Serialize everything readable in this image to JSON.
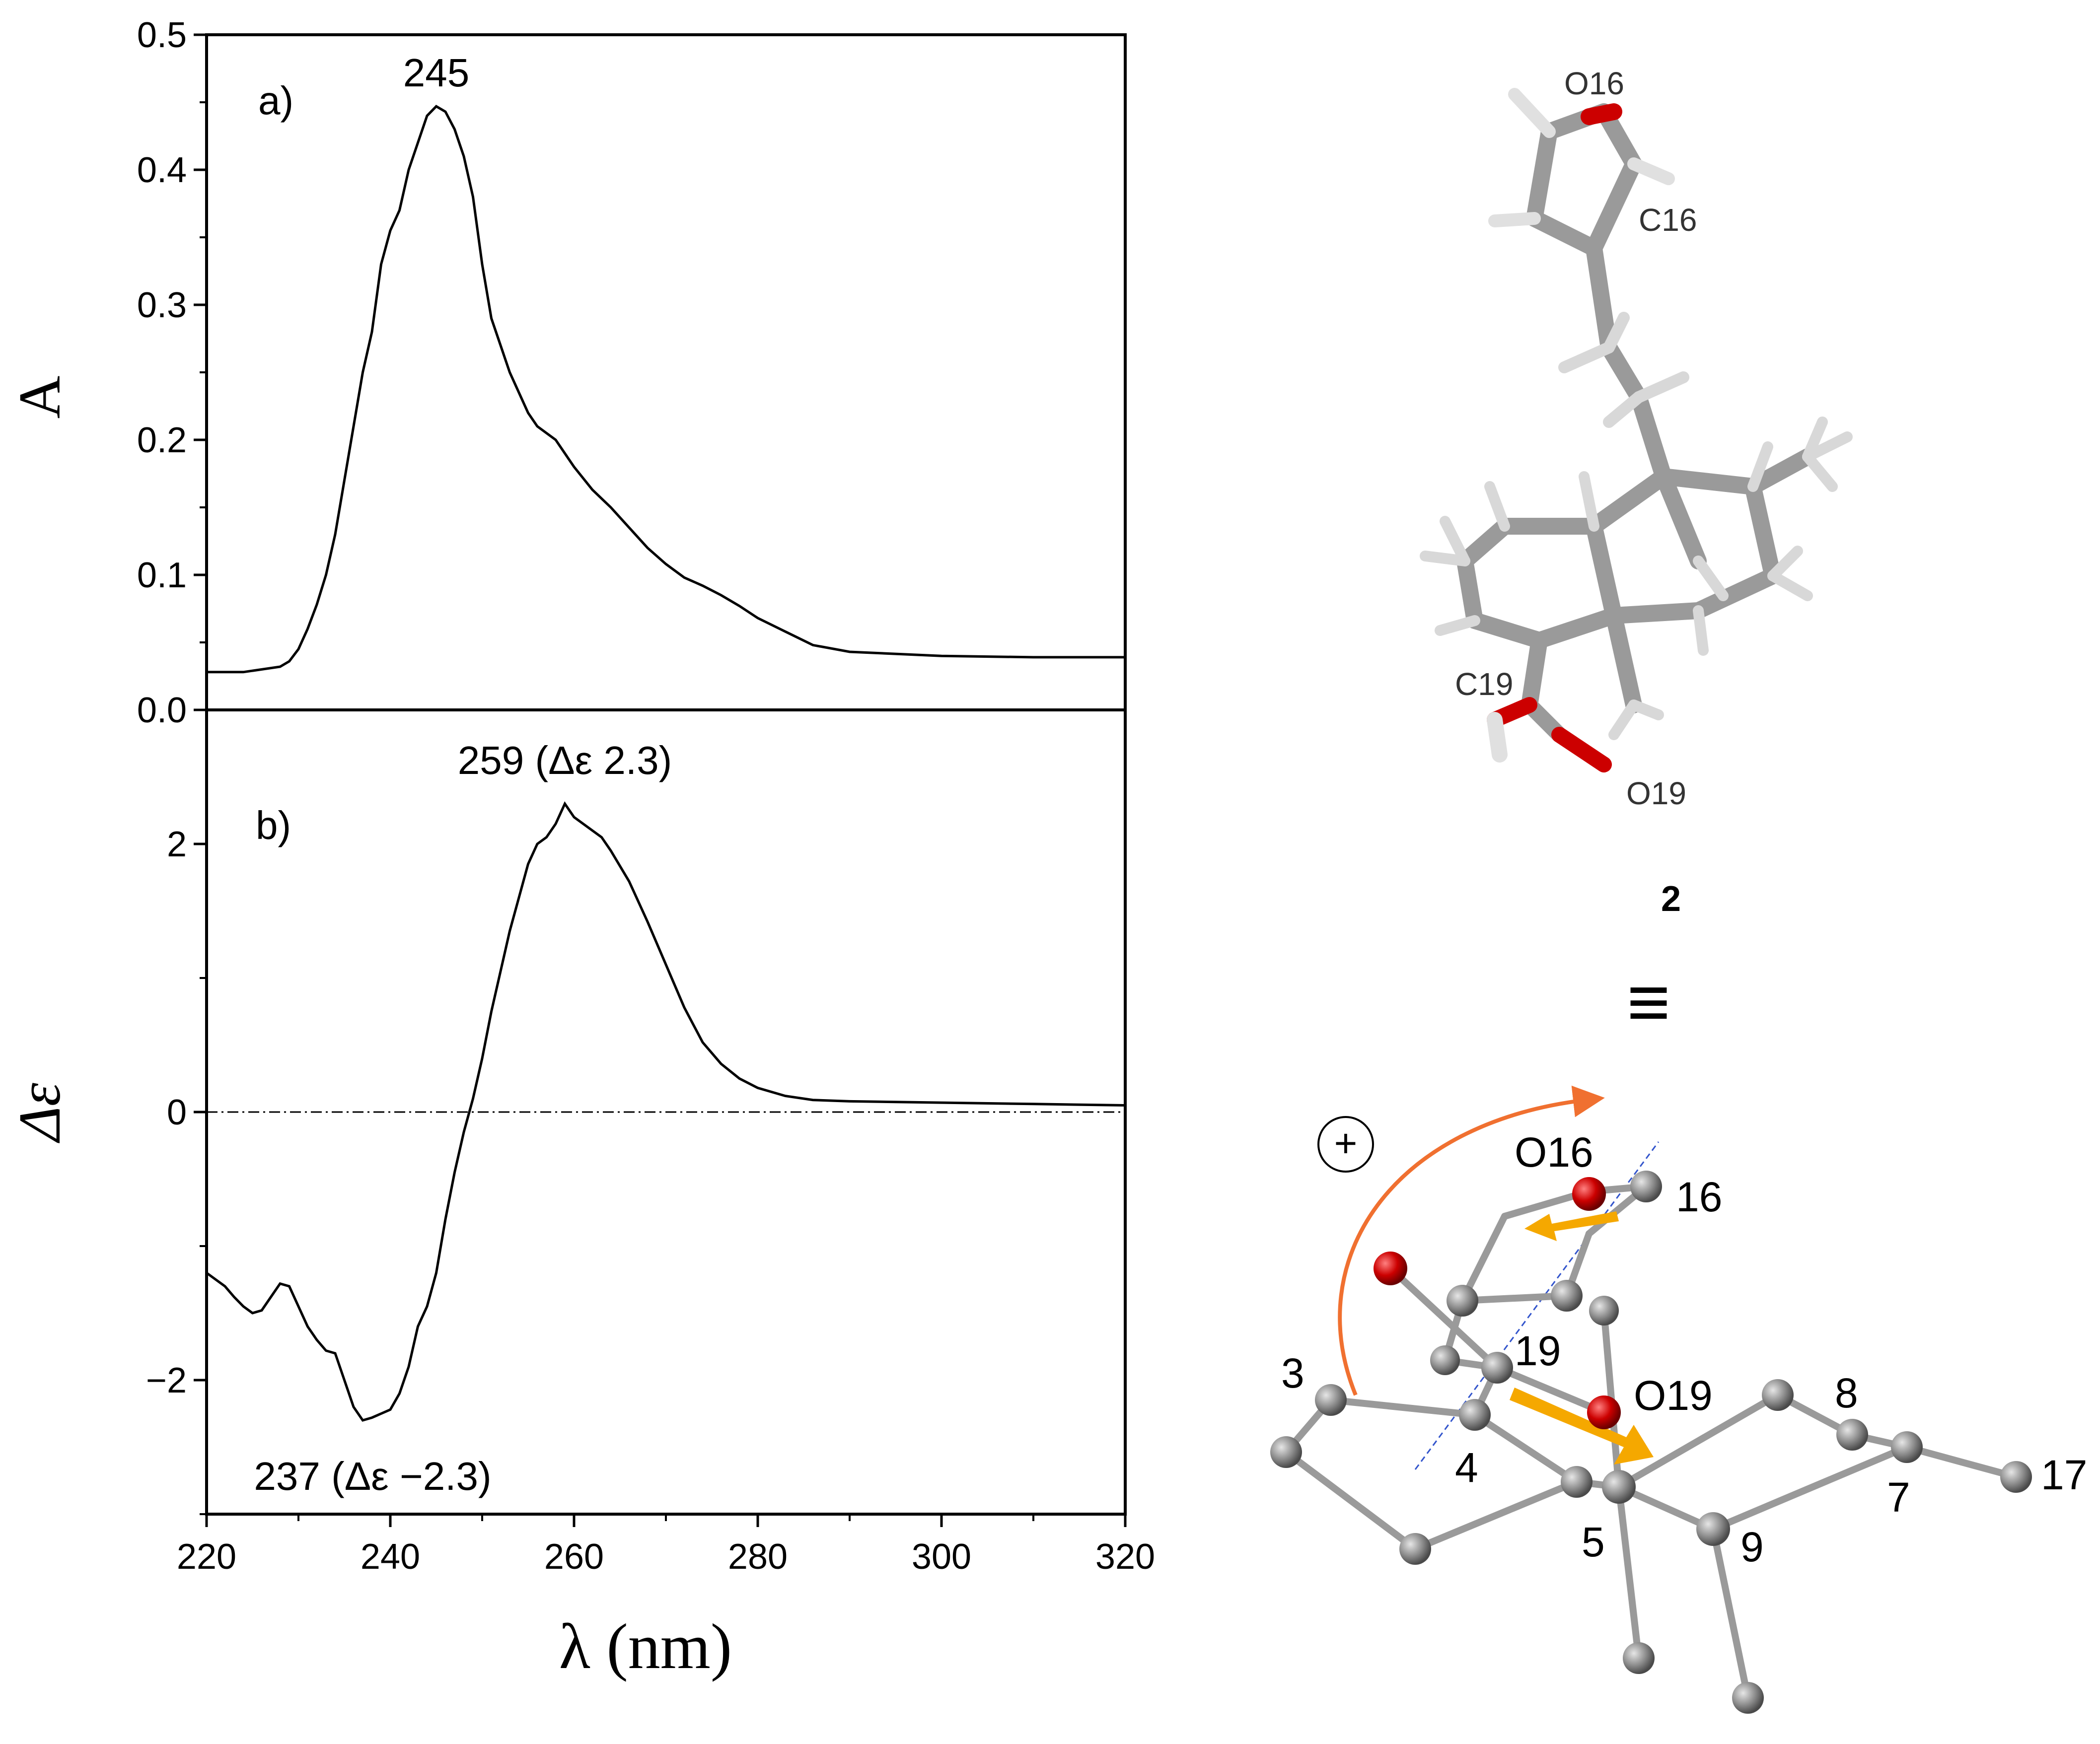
{
  "chart_data": [
    {
      "type": "line",
      "panel_label": "a)",
      "ylabel": "A",
      "xlabel": "",
      "xlim": [
        220,
        320
      ],
      "ylim": [
        0.0,
        0.5
      ],
      "yticks": [
        "0.0",
        "0.1",
        "0.2",
        "0.3",
        "0.4",
        "0.5"
      ],
      "series": [
        {
          "x": [
            220,
            224,
            228,
            229,
            230,
            231,
            232,
            233,
            234,
            235,
            236,
            237,
            238,
            239,
            240,
            241,
            242,
            243,
            244,
            245,
            246,
            247,
            248,
            249,
            250,
            251,
            252,
            253,
            254,
            255,
            256,
            257,
            258,
            259,
            260,
            262,
            264,
            266,
            268,
            270,
            272,
            274,
            276,
            278,
            280,
            283,
            286,
            290,
            300,
            310,
            320
          ],
          "y": [
            0.028,
            0.028,
            0.032,
            0.036,
            0.045,
            0.06,
            0.078,
            0.1,
            0.13,
            0.17,
            0.21,
            0.25,
            0.28,
            0.33,
            0.355,
            0.37,
            0.4,
            0.42,
            0.44,
            0.447,
            0.443,
            0.43,
            0.41,
            0.38,
            0.33,
            0.29,
            0.27,
            0.25,
            0.235,
            0.22,
            0.21,
            0.205,
            0.2,
            0.19,
            0.18,
            0.163,
            0.15,
            0.135,
            0.12,
            0.108,
            0.098,
            0.092,
            0.085,
            0.077,
            0.068,
            0.058,
            0.048,
            0.043,
            0.04,
            0.039,
            0.039
          ]
        }
      ],
      "annotations": [
        {
          "text": "245",
          "x": 245,
          "y": 0.447
        }
      ]
    },
    {
      "type": "line",
      "panel_label": "b)",
      "ylabel": "Δε",
      "xlabel": "λ (nm)",
      "xlim": [
        220,
        320
      ],
      "ylim": [
        -3.0,
        3.0
      ],
      "xticks": [
        "220",
        "240",
        "260",
        "280",
        "300",
        "320"
      ],
      "yticks": [
        "−2",
        "0",
        "2"
      ],
      "zero_line": true,
      "series": [
        {
          "x": [
            220,
            221,
            222,
            223,
            224,
            225,
            226,
            227,
            228,
            229,
            230,
            231,
            232,
            233,
            234,
            235,
            236,
            237,
            238,
            239,
            240,
            241,
            242,
            243,
            244,
            245,
            246,
            247,
            248,
            249,
            250,
            251,
            252,
            253,
            254,
            255,
            256,
            257,
            258,
            259,
            260,
            261,
            262,
            263,
            264,
            266,
            268,
            270,
            272,
            274,
            276,
            278,
            280,
            283,
            286,
            290,
            300,
            310,
            320
          ],
          "y": [
            -1.2,
            -1.25,
            -1.3,
            -1.38,
            -1.45,
            -1.5,
            -1.48,
            -1.38,
            -1.28,
            -1.3,
            -1.45,
            -1.6,
            -1.7,
            -1.78,
            -1.8,
            -2.0,
            -2.2,
            -2.3,
            -2.28,
            -2.25,
            -2.22,
            -2.1,
            -1.9,
            -1.6,
            -1.45,
            -1.2,
            -0.8,
            -0.45,
            -0.15,
            0.1,
            0.4,
            0.75,
            1.05,
            1.35,
            1.6,
            1.85,
            2.0,
            2.05,
            2.15,
            2.3,
            2.2,
            2.15,
            2.1,
            2.05,
            1.95,
            1.72,
            1.42,
            1.1,
            0.78,
            0.52,
            0.36,
            0.25,
            0.18,
            0.12,
            0.09,
            0.08,
            0.07,
            0.06,
            0.05
          ]
        }
      ],
      "annotations": [
        {
          "text": "259 (Δε 2.3)",
          "x": 259,
          "y": 2.3
        },
        {
          "text": "237 (Δε −2.3)",
          "x": 237,
          "y": -2.3
        }
      ]
    }
  ],
  "molecule_top": {
    "labels": [
      "O16",
      "C16",
      "C19",
      "O19"
    ],
    "compound_number": "2",
    "equivalence_symbol": "≡"
  },
  "molecule_bottom": {
    "sign": "+",
    "labels": [
      "O16",
      "16",
      "19",
      "O19",
      "3",
      "4",
      "5",
      "8",
      "7",
      "9",
      "17"
    ]
  },
  "colors": {
    "line": "#000000",
    "oxygen": "#cc0000",
    "carbon": "#8a8a8a",
    "hydrogen": "#ffffff",
    "arrow_orange": "#f07030",
    "dipole_arrow": "#f5a800",
    "axis_dashed": "#3355cc"
  }
}
